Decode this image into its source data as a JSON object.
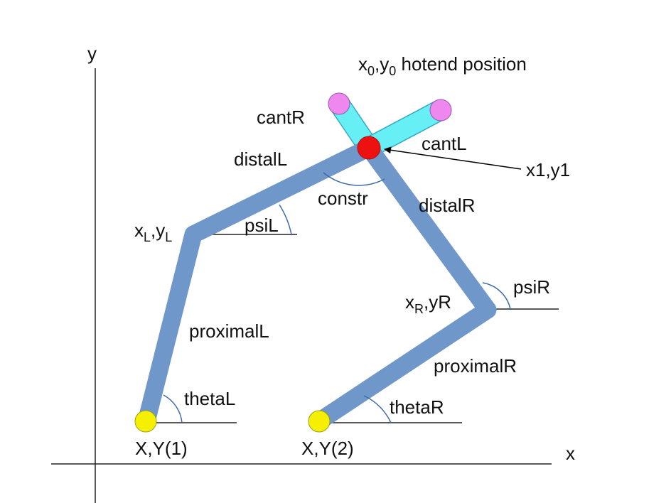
{
  "axes": {
    "x_label": "x",
    "y_label": "y"
  },
  "labels": {
    "hotend": {
      "x": "x",
      "x_sub": "0",
      "sep": ",",
      "y": "y",
      "y_sub": "0",
      "rest": " hotend position"
    },
    "cantR": "cantR",
    "cantL": "cantL",
    "distalL": "distalL",
    "distalR": "distalR",
    "constr": "constr",
    "x1y1": "x1,y1",
    "xLyL": {
      "x": "x",
      "x_sub": "L",
      "sep": ",",
      "y": "y",
      "y_sub": "L"
    },
    "psiL": "psiL",
    "psiR": "psiR",
    "xRyR": {
      "x": "x",
      "x_sub": "R",
      "rest": ",yR"
    },
    "proximalL": "proximalL",
    "proximalR": "proximalR",
    "thetaL": "thetaL",
    "thetaR": "thetaR",
    "base1": "X,Y(1)",
    "base2": "X,Y(2)"
  },
  "colors": {
    "link": "#6f97c9",
    "link_stroke": "#4d76a9",
    "cantilever": "#66f0f5",
    "cantilever_stroke": "#3aa7c0",
    "end_joint": "#ee88ee",
    "hotend_joint": "#ee1111",
    "base_joint": "#f5f000",
    "angle_arc": "#3d6aa8",
    "axis": "#222222"
  }
}
